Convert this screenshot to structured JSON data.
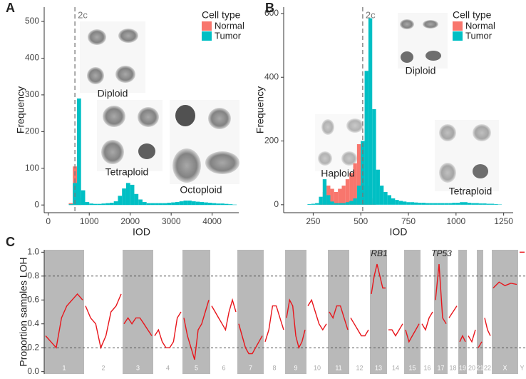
{
  "chart_data": [
    {
      "type": "histogram",
      "panel": "A",
      "xlabel": "IOD",
      "ylabel": "Frequency",
      "legend_title": "Cell type",
      "bins": [
        200,
        300,
        400,
        500,
        600,
        700,
        800,
        900,
        1000,
        1100,
        1200,
        1300,
        1400,
        1500,
        1600,
        1700,
        1800,
        1900,
        2000,
        2100,
        2200,
        2300,
        2400,
        2500,
        2600,
        2700,
        2800,
        2900,
        3000,
        3100,
        3200,
        3300,
        3400,
        3500,
        3600,
        3700,
        3800,
        3900,
        4000,
        4100,
        4200,
        4300,
        4400,
        4500,
        4600
      ],
      "series": [
        {
          "name": "Normal",
          "color": "#F8766D",
          "values": [
            0,
            0,
            0,
            5,
            105,
            20,
            0,
            0,
            0,
            0,
            0,
            0,
            0,
            0,
            0,
            0,
            0,
            0,
            0,
            0,
            0,
            0,
            0,
            0,
            0,
            0,
            0,
            0,
            0,
            0,
            0,
            0,
            0,
            0,
            0,
            0,
            0,
            0,
            0,
            0,
            0,
            0,
            0,
            0
          ]
        },
        {
          "name": "Tumor",
          "color": "#00BFC4",
          "values": [
            0,
            0,
            0,
            2,
            60,
            290,
            40,
            8,
            4,
            3,
            3,
            4,
            5,
            6,
            10,
            25,
            45,
            60,
            55,
            30,
            15,
            8,
            5,
            5,
            5,
            5,
            5,
            6,
            7,
            8,
            10,
            12,
            12,
            10,
            9,
            8,
            7,
            6,
            5,
            4,
            4,
            3,
            2,
            1
          ]
        }
      ],
      "xlim": [
        -100,
        4650
      ],
      "ylim": [
        -21,
        539
      ],
      "xticks": [
        0,
        1000,
        2000,
        3000,
        4000
      ],
      "yticks": [
        0,
        100,
        200,
        300,
        400,
        500
      ],
      "vline": {
        "value": 650,
        "label": "2c"
      },
      "annotations": [
        "Diploid",
        "Tetraploid",
        "Octoploid"
      ]
    },
    {
      "type": "histogram",
      "panel": "B",
      "xlabel": "IOD",
      "ylabel": "Frequency",
      "legend_title": "Cell type",
      "bins": [
        160,
        180,
        200,
        220,
        240,
        260,
        280,
        300,
        320,
        340,
        360,
        380,
        400,
        420,
        440,
        460,
        480,
        500,
        520,
        540,
        560,
        580,
        600,
        620,
        640,
        660,
        680,
        700,
        720,
        740,
        760,
        780,
        800,
        820,
        840,
        860,
        880,
        900,
        920,
        940,
        960,
        980,
        1000,
        1020,
        1040,
        1060,
        1080,
        1100,
        1120,
        1140,
        1160,
        1180,
        1200,
        1220,
        1240
      ],
      "series": [
        {
          "name": "Normal",
          "color": "#F8766D",
          "values": [
            0,
            0,
            0,
            0,
            0,
            0,
            5,
            40,
            60,
            50,
            40,
            50,
            60,
            80,
            100,
            130,
            190,
            150,
            60,
            20,
            5,
            0,
            0,
            0,
            0,
            0,
            0,
            0,
            0,
            0,
            0,
            0,
            0,
            0,
            0,
            0,
            0,
            0,
            0,
            0,
            0,
            0,
            0,
            0,
            0,
            0,
            0,
            0,
            0,
            0,
            0,
            0,
            0,
            0
          ]
        },
        {
          "name": "Tumor",
          "color": "#00BFC4",
          "values": [
            0,
            0,
            0,
            2,
            3,
            5,
            25,
            80,
            30,
            10,
            5,
            5,
            5,
            8,
            12,
            20,
            60,
            200,
            420,
            585,
            300,
            110,
            60,
            40,
            30,
            20,
            15,
            12,
            10,
            8,
            8,
            7,
            6,
            6,
            5,
            5,
            5,
            5,
            5,
            5,
            5,
            6,
            6,
            8,
            8,
            6,
            5,
            5,
            4,
            4,
            3,
            3,
            2,
            1
          ]
        }
      ],
      "xlim": [
        95,
        1300
      ],
      "ylim": [
        -25,
        620
      ],
      "xticks": [
        250,
        500,
        750,
        1000,
        1250
      ],
      "yticks": [
        0,
        200,
        400,
        600
      ],
      "vline": {
        "value": 510,
        "label": "2c"
      },
      "annotations": [
        "Diploid",
        "Haploid",
        "Tetraploid"
      ]
    },
    {
      "type": "loh",
      "panel": "C",
      "ylabel": "Proportion samples LOH",
      "color": "#e8151b",
      "categories": [
        "1",
        "2",
        "3",
        "4",
        "5",
        "6",
        "7",
        "8",
        "9",
        "10",
        "11",
        "12",
        "13",
        "14",
        "15",
        "16",
        "17",
        "18",
        "19",
        "20",
        "21",
        "22",
        "X",
        "Y"
      ],
      "values": [
        [
          0.3,
          0.25,
          0.2,
          0.45,
          0.55,
          0.6,
          0.65,
          0.6
        ],
        [
          0.55,
          0.45,
          0.4,
          0.2,
          0.3,
          0.5,
          0.55,
          0.65
        ],
        [
          0.4,
          0.45,
          0.4,
          0.45,
          0.45,
          0.4,
          0.35,
          0.3
        ],
        [
          0.3,
          0.35,
          0.25,
          0.2,
          0.2,
          0.25,
          0.45,
          0.5
        ],
        [
          0.45,
          0.3,
          0.2,
          0.1,
          0.35,
          0.4,
          0.5,
          0.6
        ],
        [
          0.55,
          0.5,
          0.45,
          0.4,
          0.35,
          0.5,
          0.6,
          0.5
        ],
        [
          0.4,
          0.3,
          0.2,
          0.15,
          0.15,
          0.2,
          0.25,
          0.3
        ],
        [
          0.25,
          0.35,
          0.55,
          0.55,
          0.45,
          0.35
        ],
        [
          0.45,
          0.6,
          0.55,
          0.3,
          0.2,
          0.25,
          0.35
        ],
        [
          0.55,
          0.6,
          0.5,
          0.4,
          0.35,
          0.4
        ],
        [
          0.5,
          0.45,
          0.55,
          0.55,
          0.45,
          0.35
        ],
        [
          0.45,
          0.4,
          0.35,
          0.3,
          0.3,
          0.35
        ],
        [
          0.65,
          0.8,
          0.9,
          0.8,
          0.7,
          0.7
        ],
        [
          0.35,
          0.35,
          0.3,
          0.35,
          0.4
        ],
        [
          0.35,
          0.25,
          0.3,
          0.35,
          0.4
        ],
        [
          0.4,
          0.35,
          0.45,
          0.5
        ],
        [
          0.6,
          0.9,
          0.45,
          0.4
        ],
        [
          0.45,
          0.5,
          0.55
        ],
        [
          0.25,
          0.3,
          0.25
        ],
        [
          0.3,
          0.25,
          0.35
        ],
        [
          0.2,
          0.25
        ],
        [
          0.45,
          0.35,
          0.3
        ],
        [
          0.7,
          0.75,
          0.72,
          0.74,
          0.73
        ],
        [
          1,
          1
        ]
      ],
      "ylim": [
        -0.02,
        1.02
      ],
      "yticks": [
        {
          "value": 0,
          "label": "0.0"
        },
        0.2,
        0.4,
        0.6,
        0.8,
        {
          "value": 1,
          "label": "1.0"
        }
      ],
      "reference_lines": [
        0.2,
        0.8
      ],
      "annotations": [
        {
          "text": "RB1",
          "chromosome": "13"
        },
        {
          "text": "TP53",
          "chromosome": "17"
        }
      ]
    }
  ]
}
